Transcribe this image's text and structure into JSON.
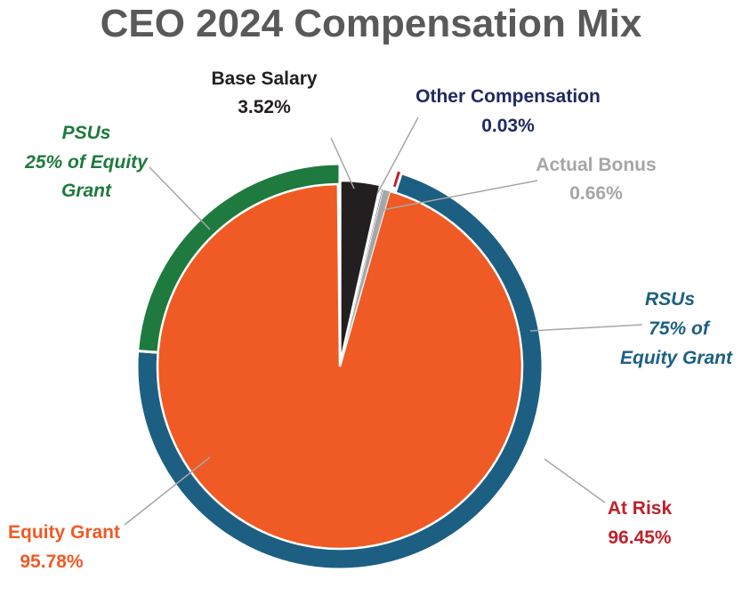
{
  "title": "CEO 2024 Compensation Mix",
  "chart_data": {
    "type": "pie",
    "title": "CEO 2024 Compensation Mix",
    "inner_series": {
      "name": "Compensation Components",
      "slices": [
        {
          "key": "base_salary",
          "label": "Base Salary",
          "value": 3.52,
          "value_text": "3.52%",
          "color": "#231F20"
        },
        {
          "key": "other_compensation",
          "label": "Other Compensation",
          "value": 0.03,
          "value_text": "0.03%",
          "color": "#1F2A60"
        },
        {
          "key": "actual_bonus",
          "label": "Actual Bonus",
          "value": 0.66,
          "value_text": "0.66%",
          "color": "#A6A6A6"
        },
        {
          "key": "equity_grant",
          "label": "Equity Grant",
          "value": 95.78,
          "value_text": "95.78%",
          "color": "#F05A24"
        }
      ]
    },
    "equity_split_ring": {
      "name": "Equity Grant Split",
      "segments": [
        {
          "key": "rsus",
          "label": "RSUs",
          "detail": [
            "75% of",
            "Equity Grant"
          ],
          "value": 75,
          "color": "#1C5F82"
        },
        {
          "key": "psus",
          "label": "PSUs",
          "detail": [
            "25% of Equity",
            "Grant"
          ],
          "value": 25,
          "color": "#1E7A3E"
        }
      ]
    },
    "at_risk_ring": {
      "label": "At Risk",
      "value": 96.45,
      "value_text": "96.45%",
      "color": "#C0202A"
    }
  }
}
